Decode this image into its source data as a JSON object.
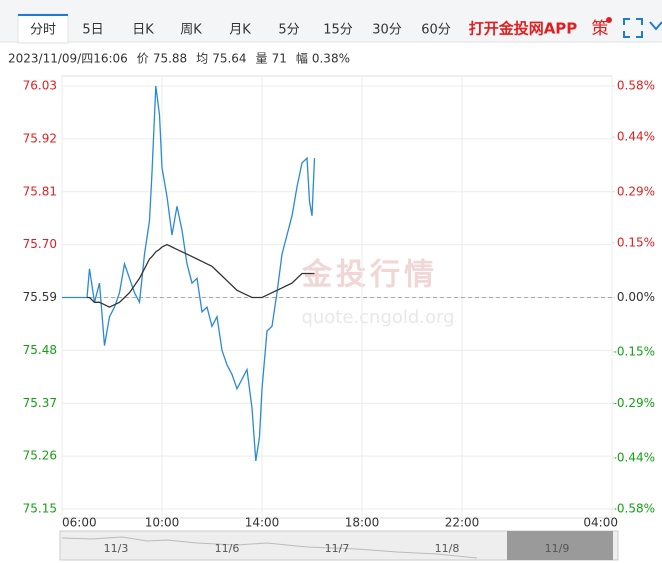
{
  "tabs": {
    "items": [
      "分时",
      "5日",
      "日K",
      "周K",
      "月K",
      "5分",
      "15分",
      "30分",
      "60分"
    ],
    "active": 0
  },
  "brand": "打开金投网APP",
  "strategy_button": "策",
  "info": {
    "datetime": "2023/11/09/四16:06",
    "price_label": "价",
    "price": "75.88",
    "avg_label": "均",
    "avg": "75.64",
    "volume_label": "量",
    "volume": "71",
    "change_label": "幅",
    "change": "0.38%"
  },
  "watermark": {
    "title": "金投行情",
    "url": "quote.cngold.org"
  },
  "navigator": {
    "labels": [
      "11/3",
      "11/6",
      "11/7",
      "11/8",
      "11/9"
    ]
  },
  "chart_data": {
    "type": "line",
    "x": [
      6.0,
      7.0,
      7.1,
      7.3,
      7.5,
      7.7,
      7.9,
      8.1,
      8.3,
      8.5,
      8.7,
      8.9,
      9.1,
      9.3,
      9.5,
      9.6,
      9.75,
      9.9,
      10.0,
      10.2,
      10.4,
      10.6,
      10.8,
      11.0,
      11.2,
      11.4,
      11.6,
      11.8,
      12.0,
      12.2,
      12.4,
      12.6,
      12.8,
      13.0,
      13.2,
      13.4,
      13.6,
      13.75,
      13.9,
      14.0,
      14.2,
      14.4,
      14.6,
      14.8,
      15.0,
      15.2,
      15.4,
      15.6,
      15.8,
      15.9,
      16.0,
      16.1
    ],
    "series": [
      {
        "name": "价",
        "color": "#2a8ad4",
        "values": [
          75.59,
          75.59,
          75.65,
          75.58,
          75.62,
          75.49,
          75.55,
          75.57,
          75.6,
          75.66,
          75.63,
          75.6,
          75.58,
          75.68,
          75.75,
          75.85,
          76.03,
          75.97,
          75.86,
          75.8,
          75.72,
          75.78,
          75.73,
          75.66,
          75.62,
          75.63,
          75.56,
          75.57,
          75.53,
          75.55,
          75.48,
          75.45,
          75.43,
          75.4,
          75.42,
          75.44,
          75.36,
          75.25,
          75.3,
          75.4,
          75.52,
          75.53,
          75.6,
          75.68,
          75.72,
          75.76,
          75.82,
          75.87,
          75.88,
          75.79,
          75.76,
          75.88
        ]
      },
      {
        "name": "均",
        "color": "#333333",
        "values": [
          null,
          75.59,
          75.59,
          75.58,
          75.58,
          75.575,
          75.57,
          75.575,
          75.58,
          75.59,
          75.6,
          75.615,
          75.63,
          75.65,
          75.67,
          75.675,
          75.685,
          75.69,
          75.695,
          75.7,
          75.695,
          75.69,
          75.685,
          75.68,
          75.675,
          75.67,
          75.665,
          75.66,
          75.655,
          75.645,
          75.635,
          75.625,
          75.615,
          75.605,
          75.6,
          75.595,
          75.59,
          75.59,
          75.59,
          75.59,
          75.595,
          75.6,
          75.605,
          75.61,
          75.615,
          75.62,
          75.63,
          75.64,
          75.64,
          75.64,
          75.64,
          75.64
        ]
      }
    ],
    "base": 75.59,
    "up_color": "#e02020",
    "down_color": "#16a016",
    "flat_color": "#333333",
    "xlim": [
      6,
      28
    ],
    "xticks": [
      {
        "value": 6,
        "label": "06:00"
      },
      {
        "value": 10,
        "label": "10:00"
      },
      {
        "value": 14,
        "label": "14:00"
      },
      {
        "value": 18,
        "label": "18:00"
      },
      {
        "value": 22,
        "label": "22:00"
      },
      {
        "value": 28,
        "label": "04:00"
      }
    ],
    "ylim": [
      75.15,
      76.03
    ],
    "yticks": [
      75.15,
      75.26,
      75.37,
      75.48,
      {
        "value": 75.59,
        "label": "75.59"
      },
      {
        "value": 75.7,
        "label": "75.70"
      },
      75.81,
      75.92,
      76.03
    ],
    "y2lim": [
      -0.58,
      0.58
    ],
    "y2ticks": [
      {
        "value": -0.58,
        "label": "-0.58%"
      },
      {
        "value": -0.44,
        "label": "-0.44%"
      },
      {
        "value": -0.29,
        "label": "-0.29%"
      },
      {
        "value": -0.15,
        "label": "-0.15%"
      },
      {
        "value": 0,
        "label": "0.00%"
      },
      {
        "value": 0.15,
        "label": "0.15%"
      },
      {
        "value": 0.29,
        "label": "0.29%"
      },
      {
        "value": 0.44,
        "label": "0.44%"
      },
      {
        "value": 0.58,
        "label": "0.58%"
      }
    ],
    "grid": true
  }
}
